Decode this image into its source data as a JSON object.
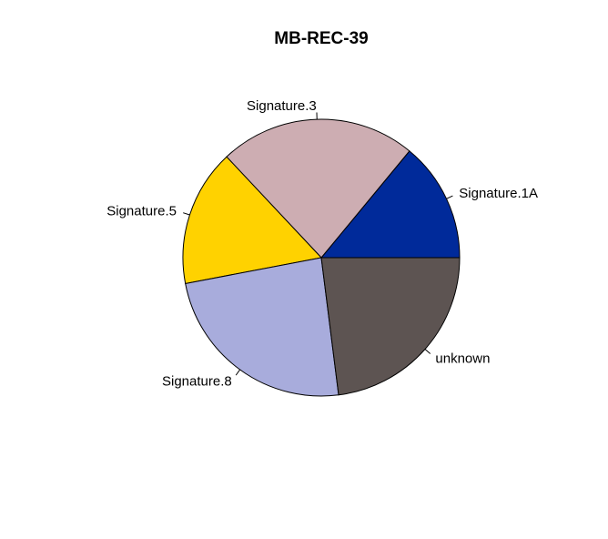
{
  "chart_data": {
    "type": "pie",
    "title": "MB-REC-39",
    "start_angle_deg": 0,
    "direction": "counterclockwise",
    "slices": [
      {
        "label": "Signature.1A",
        "value": 14,
        "color": "#002a9a"
      },
      {
        "label": "Signature.3",
        "value": 23,
        "color": "#cdadb2"
      },
      {
        "label": "Signature.5",
        "value": 16,
        "color": "#ffd200"
      },
      {
        "label": "Signature.8",
        "value": 24,
        "color": "#a8acdc"
      },
      {
        "label": "unknown",
        "value": 23,
        "color": "#5d5452"
      }
    ]
  }
}
